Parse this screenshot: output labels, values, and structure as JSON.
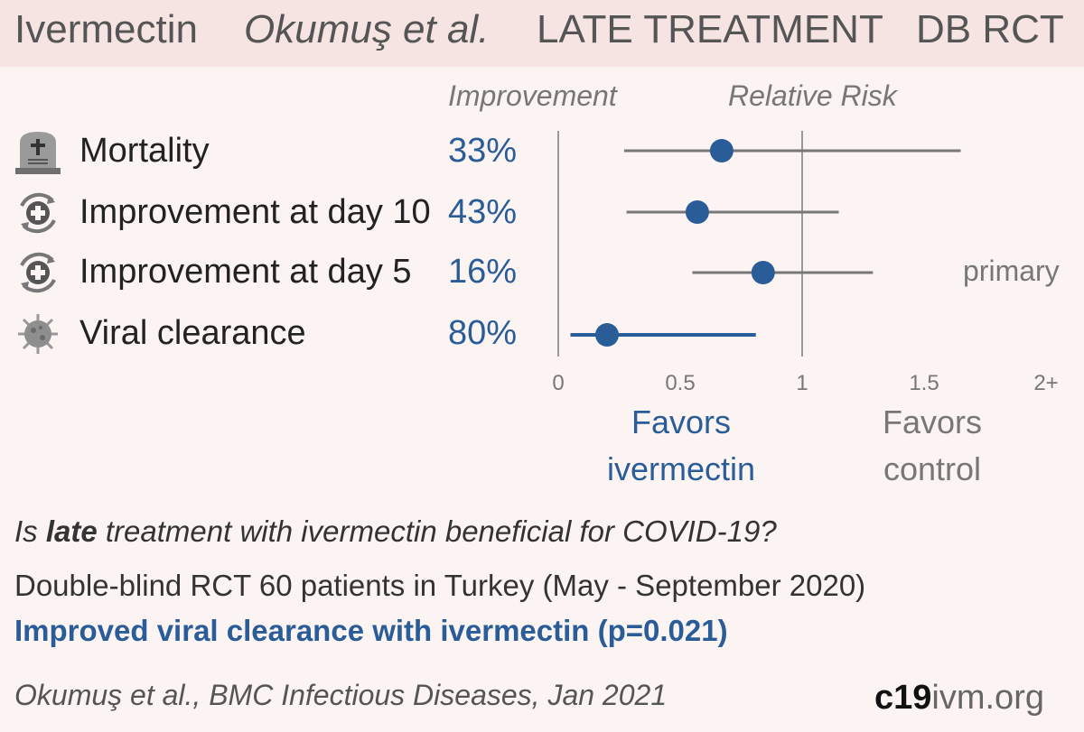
{
  "header": {
    "drug": "Ivermectin",
    "authors": "Okumuş et al.",
    "stage": "LATE TREATMENT",
    "design": "DB RCT"
  },
  "columns": {
    "improvement": "Improvement",
    "relative_risk": "Relative Risk"
  },
  "outcomes": [
    {
      "label": "Mortality",
      "improvement": "33%",
      "icon": "tombstone-icon"
    },
    {
      "label": "Improvement at day 10",
      "improvement": "43%",
      "icon": "recovery-icon"
    },
    {
      "label": "Improvement at day 5",
      "improvement": "16%",
      "icon": "recovery-icon"
    },
    {
      "label": "Viral clearance",
      "improvement": "80%",
      "icon": "virus-icon"
    }
  ],
  "primary_label": "primary",
  "favors": {
    "drug": [
      "Favors",
      "ivermectin"
    ],
    "control": [
      "Favors",
      "control"
    ]
  },
  "question": {
    "pre": "Is ",
    "bold": "late",
    "post": " treatment with ivermectin beneficial for COVID-19?"
  },
  "description": "Double-blind RCT 60 patients in Turkey (May - September 2020)",
  "conclusion": "Improved viral clearance with ivermectin (p=0.021)",
  "citation": "Okumuş et al., BMC Infectious Diseases, Jan 2021",
  "brand": {
    "bold": "c19",
    "rest": "ivm.org"
  },
  "colors": {
    "accent": "#2a5d97",
    "ci_line": "#777777",
    "axis": "#999999"
  },
  "chart_data": {
    "type": "scatter",
    "subtype": "forest-plot",
    "xlabel": "Relative Risk",
    "xlim": [
      0,
      2
    ],
    "x_ticks": [
      0,
      0.5,
      1,
      1.5,
      2
    ],
    "x_tick_labels": [
      "0",
      "0.5",
      "1",
      "1.5",
      "2+"
    ],
    "reference_line": 1,
    "series": [
      {
        "name": "Mortality",
        "rr": 0.67,
        "ci_low": 0.27,
        "ci_high": 1.65
      },
      {
        "name": "Improvement at day 10",
        "rr": 0.57,
        "ci_low": 0.28,
        "ci_high": 1.15
      },
      {
        "name": "Improvement at day 5",
        "rr": 0.84,
        "ci_low": 0.55,
        "ci_high": 1.29,
        "primary": true
      },
      {
        "name": "Viral clearance",
        "rr": 0.2,
        "ci_low": 0.05,
        "ci_high": 0.81,
        "highlight": true
      }
    ]
  }
}
